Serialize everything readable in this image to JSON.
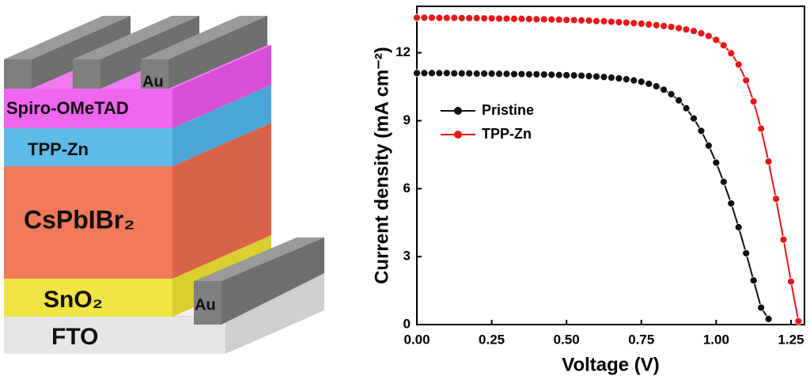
{
  "diagram": {
    "layers": [
      "Au",
      "Spiro-OMeTAD",
      "TPP-Zn",
      "CsPbIBr₂",
      "SnO₂",
      "FTO",
      "Au"
    ]
  },
  "chart_data": {
    "type": "line",
    "x_label": "Voltage (V)",
    "y_label": "Current density (mA cm⁻²)",
    "x": [
      0,
      0.025,
      0.05,
      0.075,
      0.1,
      0.125,
      0.15,
      0.175,
      0.2,
      0.225,
      0.25,
      0.275,
      0.3,
      0.325,
      0.35,
      0.375,
      0.4,
      0.425,
      0.45,
      0.475,
      0.5,
      0.525,
      0.55,
      0.575,
      0.6,
      0.625,
      0.65,
      0.675,
      0.7,
      0.725,
      0.75,
      0.775,
      0.8,
      0.825,
      0.85,
      0.875,
      0.9,
      0.925,
      0.95,
      0.975,
      1.0,
      1.025,
      1.05,
      1.075,
      1.1,
      1.125,
      1.15,
      1.175,
      1.2,
      1.225,
      1.25,
      1.275
    ],
    "series": [
      {
        "name": "Pristine",
        "color": "#111111",
        "values": [
          11.1,
          11.1,
          11.1,
          11.1,
          11.1,
          11.09,
          11.09,
          11.09,
          11.08,
          11.08,
          11.08,
          11.07,
          11.07,
          11.06,
          11.06,
          11.05,
          11.05,
          11.04,
          11.03,
          11.02,
          11.01,
          11.0,
          10.99,
          10.97,
          10.95,
          10.93,
          10.9,
          10.87,
          10.83,
          10.78,
          10.72,
          10.63,
          10.52,
          10.37,
          10.17,
          9.9,
          9.55,
          9.1,
          8.55,
          7.9,
          7.15,
          6.3,
          5.35,
          4.3,
          3.15,
          1.95,
          0.75,
          0.25,
          null,
          null,
          null,
          null
        ]
      },
      {
        "name": "TPP-Zn",
        "color": "#e8161a",
        "values": [
          13.55,
          13.55,
          13.55,
          13.54,
          13.54,
          13.54,
          13.53,
          13.53,
          13.53,
          13.52,
          13.52,
          13.51,
          13.51,
          13.5,
          13.5,
          13.49,
          13.48,
          13.48,
          13.47,
          13.46,
          13.45,
          13.44,
          13.43,
          13.42,
          13.4,
          13.39,
          13.37,
          13.35,
          13.33,
          13.31,
          13.28,
          13.25,
          13.22,
          13.18,
          13.14,
          13.09,
          13.03,
          12.96,
          12.86,
          12.74,
          12.57,
          12.33,
          11.98,
          11.48,
          10.78,
          9.85,
          8.65,
          7.2,
          5.55,
          3.75,
          1.9,
          0.15
        ]
      }
    ],
    "xlim": [
      0,
      1.295
    ],
    "ylim": [
      0,
      14.05
    ],
    "xticks": [
      {
        "value": 0,
        "label": "0.00"
      },
      {
        "value": 0.25,
        "label": "0.25"
      },
      {
        "value": 0.5,
        "label": "0.50"
      },
      {
        "value": 0.75,
        "label": "0.75"
      },
      {
        "value": 1,
        "label": "1.00"
      },
      {
        "value": 1.25,
        "label": "1.25"
      }
    ],
    "yticks": [
      0,
      3,
      6,
      9,
      12
    ],
    "legend": "upper left",
    "grid": false
  }
}
